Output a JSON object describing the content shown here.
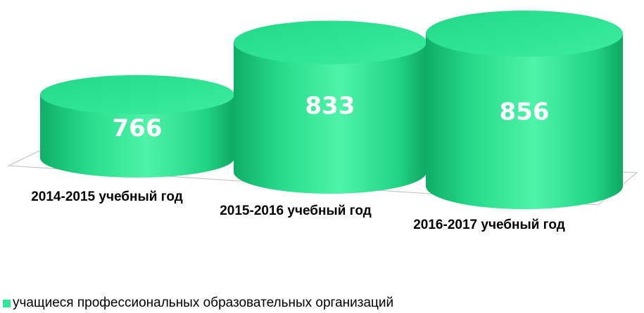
{
  "chart_data": {
    "type": "bar",
    "categories": [
      "2014-2015 учебный год",
      "2015-2016 учебный год",
      "2016-2017 учебный год"
    ],
    "series": [
      {
        "name": "учащиеся профессиональных образовательных организаций",
        "color": "#2ee89a",
        "values": [
          766,
          833,
          856
        ]
      }
    ],
    "legend": "bottom-left"
  }
}
